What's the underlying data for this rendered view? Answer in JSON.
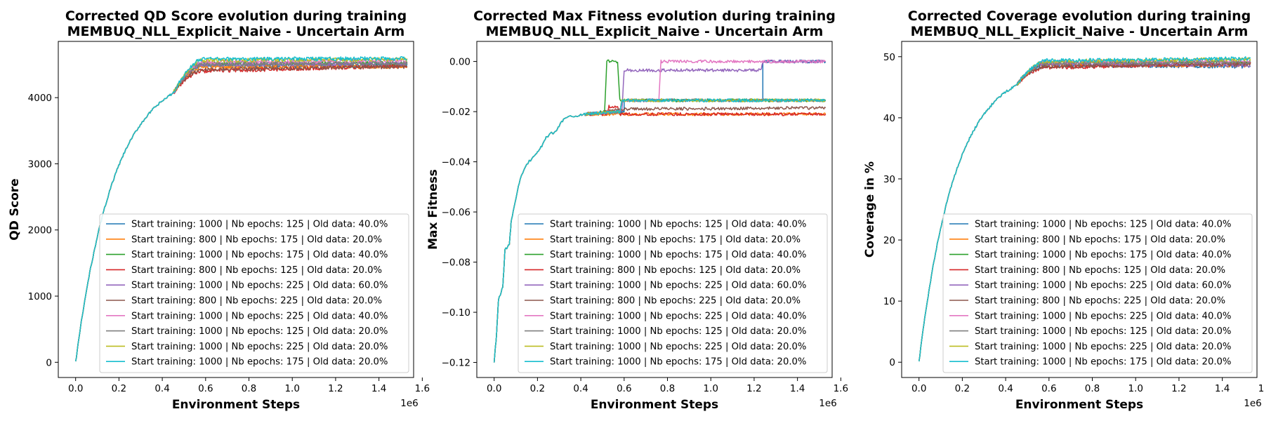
{
  "chart_data": [
    {
      "type": "line",
      "metric": "qd",
      "title": [
        "Corrected QD Score evolution during training",
        "MEMBUQ_NLL_Explicit_Naive - Uncertain Arm"
      ],
      "xlabel": "Environment Steps",
      "ylabel": "QD Score",
      "x_offset_label": "1e6",
      "xlim": [
        -0.08,
        1.56
      ],
      "ylim": [
        -230,
        4850
      ],
      "xticks": [
        0.0,
        0.2,
        0.4,
        0.6,
        0.8,
        1.0,
        1.2,
        1.4,
        1.6
      ],
      "yticks": [
        0,
        1000,
        2000,
        3000,
        4000
      ],
      "x_range": [
        0.0,
        1.53
      ],
      "curve": {
        "initial": 0,
        "plateau": 4420,
        "rate": 5.6,
        "noise": 30
      },
      "plateau_by_series": [
        4480,
        4460,
        4520,
        4390,
        4500,
        4420,
        4530,
        4500,
        4560,
        4580
      ],
      "final_by_series": [
        4490,
        4470,
        4520,
        4480,
        4510,
        4470,
        4560,
        4520,
        4580,
        4590
      ],
      "legend_placement": "lower-right",
      "grid": false
    },
    {
      "type": "line",
      "metric": "fitness",
      "title": [
        "Corrected Max Fitness evolution during training",
        "MEMBUQ_NLL_Explicit_Naive - Uncertain Arm"
      ],
      "xlabel": "Environment Steps",
      "ylabel": "Max Fitness",
      "x_offset_label": "1e6",
      "xlim": [
        -0.08,
        1.56
      ],
      "ylim": [
        -0.126,
        0.008
      ],
      "xticks": [
        0.0,
        0.2,
        0.4,
        0.6,
        0.8,
        1.0,
        1.2,
        1.4,
        1.6
      ],
      "yticks": [
        0.0,
        -0.02,
        -0.04,
        -0.06,
        -0.08,
        -0.1,
        -0.12
      ],
      "ytick_labels": [
        "0.00",
        "−0.02",
        "−0.04",
        "−0.06",
        "−0.08",
        "−0.10",
        "−0.12"
      ],
      "x_range": [
        0.0,
        1.53
      ],
      "shared_early": [
        [
          0.0,
          -0.12
        ],
        [
          0.01,
          -0.11
        ],
        [
          0.02,
          -0.095
        ],
        [
          0.04,
          -0.09
        ],
        [
          0.05,
          -0.075
        ],
        [
          0.07,
          -0.073
        ],
        [
          0.08,
          -0.063
        ],
        [
          0.1,
          -0.055
        ],
        [
          0.12,
          -0.047
        ],
        [
          0.15,
          -0.041
        ],
        [
          0.18,
          -0.038
        ],
        [
          0.2,
          -0.036
        ],
        [
          0.22,
          -0.034
        ],
        [
          0.24,
          -0.03
        ],
        [
          0.28,
          -0.028
        ],
        [
          0.3,
          -0.026
        ],
        [
          0.32,
          -0.023
        ],
        [
          0.36,
          -0.022
        ],
        [
          0.4,
          -0.021
        ],
        [
          0.42,
          -0.021
        ]
      ],
      "steps_by_series": [
        [
          [
            0.42,
            -0.021
          ],
          [
            0.6,
            -0.02
          ],
          [
            0.6,
            -0.0155
          ],
          [
            1.24,
            -0.0155
          ],
          [
            1.24,
            0.0
          ],
          [
            1.53,
            0.0
          ]
        ],
        [
          [
            0.42,
            -0.021
          ],
          [
            1.53,
            -0.021
          ]
        ],
        [
          [
            0.42,
            -0.021
          ],
          [
            0.51,
            -0.02
          ],
          [
            0.52,
            0.0
          ],
          [
            0.57,
            0.0
          ],
          [
            0.58,
            -0.0155
          ],
          [
            1.53,
            -0.0155
          ]
        ],
        [
          [
            0.42,
            -0.021
          ],
          [
            0.52,
            -0.021
          ],
          [
            0.53,
            -0.018
          ],
          [
            0.57,
            -0.018
          ],
          [
            0.58,
            -0.021
          ],
          [
            1.53,
            -0.021
          ]
        ],
        [
          [
            0.42,
            -0.021
          ],
          [
            0.59,
            -0.02
          ],
          [
            0.6,
            -0.0035
          ],
          [
            1.23,
            -0.0035
          ],
          [
            1.24,
            0.0
          ],
          [
            1.53,
            0.0
          ]
        ],
        [
          [
            0.42,
            -0.021
          ],
          [
            0.6,
            -0.019
          ],
          [
            1.53,
            -0.0185
          ]
        ],
        [
          [
            0.42,
            -0.021
          ],
          [
            0.58,
            -0.02
          ],
          [
            0.59,
            -0.0155
          ],
          [
            0.76,
            -0.0155
          ],
          [
            0.77,
            0.0
          ],
          [
            1.53,
            0.0
          ]
        ],
        [
          [
            0.42,
            -0.021
          ],
          [
            0.58,
            -0.02
          ],
          [
            0.59,
            -0.0155
          ],
          [
            1.53,
            -0.0155
          ]
        ],
        [
          [
            0.42,
            -0.021
          ],
          [
            0.58,
            -0.02
          ],
          [
            0.59,
            -0.0155
          ],
          [
            1.53,
            -0.0155
          ]
        ],
        [
          [
            0.42,
            -0.021
          ],
          [
            0.58,
            -0.02
          ],
          [
            0.59,
            -0.0155
          ],
          [
            1.53,
            -0.0155
          ]
        ]
      ],
      "noise": 0.0006,
      "legend_placement": "lower-right",
      "grid": false
    },
    {
      "type": "line",
      "metric": "coverage",
      "title": [
        "Corrected Coverage evolution during training",
        "MEMBUQ_NLL_Explicit_Naive - Uncertain Arm"
      ],
      "xlabel": "Environment Steps",
      "ylabel": "Coverage in %",
      "x_offset_label": "1e6",
      "xlim": [
        -0.08,
        1.56
      ],
      "ylim": [
        -2.5,
        52.5
      ],
      "xticks": [
        0.0,
        0.2,
        0.4,
        0.6,
        0.8,
        1.0,
        1.2,
        1.4,
        1.6
      ],
      "yticks": [
        0,
        10,
        20,
        30,
        40,
        50
      ],
      "x_range": [
        0.0,
        1.53
      ],
      "curve": {
        "initial": 0,
        "plateau": 48.6,
        "rate": 6.0,
        "noise": 0.3
      },
      "plateau_by_series": [
        48.6,
        48.7,
        49.0,
        48.1,
        48.9,
        48.3,
        49.1,
        48.9,
        49.2,
        49.3
      ],
      "final_by_series": [
        48.4,
        48.6,
        49.1,
        48.9,
        48.6,
        48.8,
        49.3,
        49.1,
        49.6,
        49.7
      ],
      "legend_placement": "lower-right",
      "grid": false
    }
  ],
  "series": [
    {
      "name": "Start training: 1000 | Nb epochs: 125 | Old data: 40.0%",
      "color": "#1f77b4"
    },
    {
      "name": "Start training: 800 | Nb epochs: 175 | Old data: 20.0%",
      "color": "#ff7f0e"
    },
    {
      "name": "Start training: 1000 | Nb epochs: 175 | Old data: 40.0%",
      "color": "#2ca02c"
    },
    {
      "name": "Start training: 800 | Nb epochs: 125 | Old data: 20.0%",
      "color": "#d62728"
    },
    {
      "name": "Start training: 1000 | Nb epochs: 225 | Old data: 60.0%",
      "color": "#9467bd"
    },
    {
      "name": "Start training: 800 | Nb epochs: 225 | Old data: 20.0%",
      "color": "#8c564b"
    },
    {
      "name": "Start training: 1000 | Nb epochs: 225 | Old data: 40.0%",
      "color": "#e377c2"
    },
    {
      "name": "Start training: 1000 | Nb epochs: 125 | Old data: 20.0%",
      "color": "#7f7f7f"
    },
    {
      "name": "Start training: 1000 | Nb epochs: 225 | Old data: 20.0%",
      "color": "#bcbd22"
    },
    {
      "name": "Start training: 1000 | Nb epochs: 175 | Old data: 20.0%",
      "color": "#17becf"
    }
  ]
}
